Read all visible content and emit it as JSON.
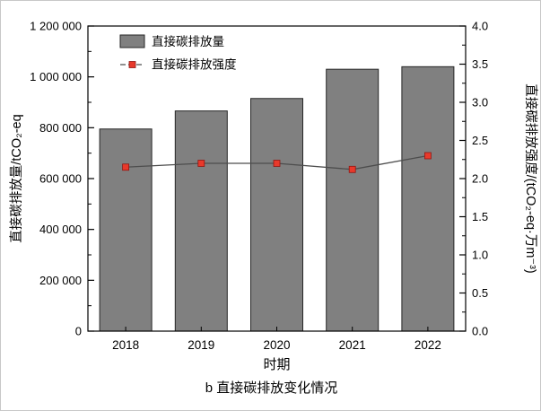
{
  "chart_data": {
    "type": "bar",
    "subtype": "bar-with-line-dual-axis",
    "categories": [
      "2018",
      "2019",
      "2020",
      "2021",
      "2022"
    ],
    "series": [
      {
        "name": "直接碳排放量",
        "type": "bar",
        "axis": "left",
        "values": [
          795000,
          866000,
          915000,
          1030000,
          1040000
        ]
      },
      {
        "name": "直接碳排放强度",
        "type": "line",
        "axis": "right",
        "values": [
          2.15,
          2.2,
          2.2,
          2.12,
          2.3
        ]
      }
    ],
    "left_axis": {
      "label": "直接碳排放量/tCO₂-eq",
      "min": 0,
      "max": 1200000,
      "tick_step": 200000,
      "tick_labels": [
        "0",
        "200 000",
        "400 000",
        "600 000",
        "800 000",
        "1 000 000",
        "1 200 000"
      ]
    },
    "right_axis": {
      "label": "直接碳排放强度/(tCO₂-eq·万m⁻³)",
      "min": 0,
      "max": 4.0,
      "tick_step": 0.5,
      "tick_labels": [
        "0.0",
        "0.5",
        "1.0",
        "1.5",
        "2.0",
        "2.5",
        "3.0",
        "3.5",
        "4.0"
      ]
    },
    "xlabel": "时期",
    "caption": "b 直接碳排放变化情况",
    "legend": {
      "position": "top-left-inside",
      "items": [
        "直接碳排放量",
        "直接碳排放强度"
      ]
    },
    "grid": "off",
    "style": {
      "bar_fill": "#808080",
      "bar_stroke": "#262626",
      "line_color": "#4d4d4d",
      "marker_fill": "#e8392b",
      "marker_stroke": "#8f1713",
      "axis_color": "#000000",
      "background": "#ffffff"
    }
  }
}
